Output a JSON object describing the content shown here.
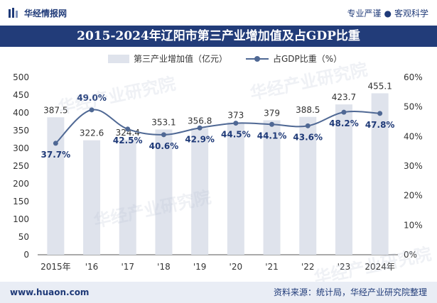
{
  "header": {
    "brand": "华经情报网",
    "tagline_left": "专业严谨",
    "tagline_sep": "●",
    "tagline_right": "客观科学"
  },
  "footer": {
    "site": "www.huaon.com",
    "source": "资料来源：统计局，华经产业研究院整理"
  },
  "watermarks": [
    "华经产业研究院",
    "华经产业研究院",
    "华经产业研究院",
    "华经产业研究院"
  ],
  "colors": {
    "title_bg": "#223c79",
    "bar": "#dfe3ec",
    "line": "#4f6894",
    "footer_bg": "#e9edf5"
  },
  "chart_data": {
    "type": "bar",
    "title": "2015-2024年辽阳市第三产业增加值及占GDP比重",
    "categories": [
      "2015年",
      "'16",
      "'17",
      "'18",
      "'19",
      "'20",
      "'21",
      "'22",
      "'23",
      "2024年"
    ],
    "series": [
      {
        "name": "第三产业增加值（亿元）",
        "type": "bar",
        "axis": "left",
        "values": [
          387.5,
          322.6,
          324.4,
          353.1,
          356.8,
          373,
          379,
          388.5,
          423.7,
          455.1
        ],
        "labels": [
          "387.5",
          "322.6",
          "324.4",
          "353.1",
          "356.8",
          "373",
          "379",
          "388.5",
          "423.7",
          "455.1"
        ]
      },
      {
        "name": "占GDP比重（%）",
        "type": "line",
        "axis": "right",
        "values": [
          37.7,
          49.0,
          42.5,
          40.6,
          42.9,
          44.5,
          44.1,
          43.6,
          48.2,
          47.8
        ],
        "labels": [
          "37.7%",
          "49.0%",
          "42.5%",
          "40.6%",
          "42.9%",
          "44.5%",
          "44.1%",
          "43.6%",
          "48.2%",
          "47.8%"
        ]
      }
    ],
    "y_left": {
      "min": 0,
      "max": 500,
      "ticks": [
        "0",
        "50",
        "100",
        "150",
        "200",
        "250",
        "300",
        "350",
        "400",
        "450",
        "500"
      ]
    },
    "y_right": {
      "min": 0,
      "max": 60,
      "ticks": [
        "0%",
        "10%",
        "20%",
        "30%",
        "40%",
        "50%",
        "60%"
      ]
    },
    "legend": "top-center",
    "grid": false
  }
}
